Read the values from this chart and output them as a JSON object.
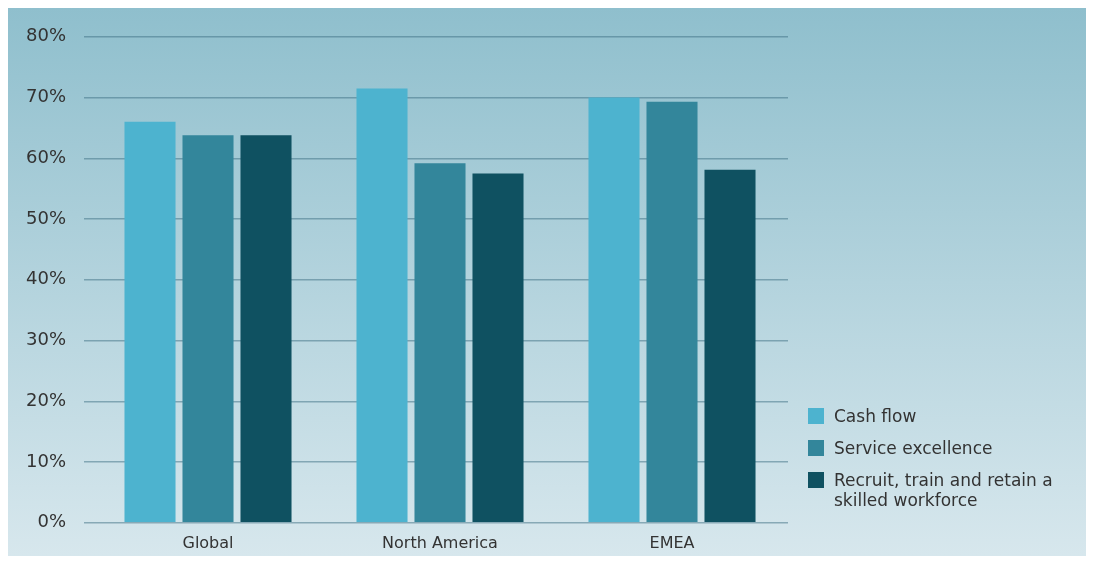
{
  "chart_data": {
    "type": "bar",
    "categories": [
      "Global",
      "North America",
      "EMEA"
    ],
    "series": [
      {
        "name": "Cash flow",
        "color": "#4db3cf",
        "values": [
          66,
          71.5,
          70
        ]
      },
      {
        "name": "Service excellence",
        "color": "#33869b",
        "values": [
          63.8,
          59.2,
          69.3
        ]
      },
      {
        "name": "Recruit, train and retain a skilled workforce",
        "color": "#0f5161",
        "values": [
          63.8,
          57.5,
          58.1
        ]
      }
    ],
    "ylim": [
      0,
      80
    ],
    "yticks": [
      {
        "value": 0,
        "label": "0%"
      },
      {
        "value": 10,
        "label": "10%"
      },
      {
        "value": 20,
        "label": "20%"
      },
      {
        "value": 30,
        "label": "30%"
      },
      {
        "value": 40,
        "label": "40%"
      },
      {
        "value": 50,
        "label": "50%"
      },
      {
        "value": 60,
        "label": "60%"
      },
      {
        "value": 70,
        "label": "70%"
      },
      {
        "value": 80,
        "label": "80%"
      }
    ],
    "grid": "y",
    "legend": "right"
  }
}
